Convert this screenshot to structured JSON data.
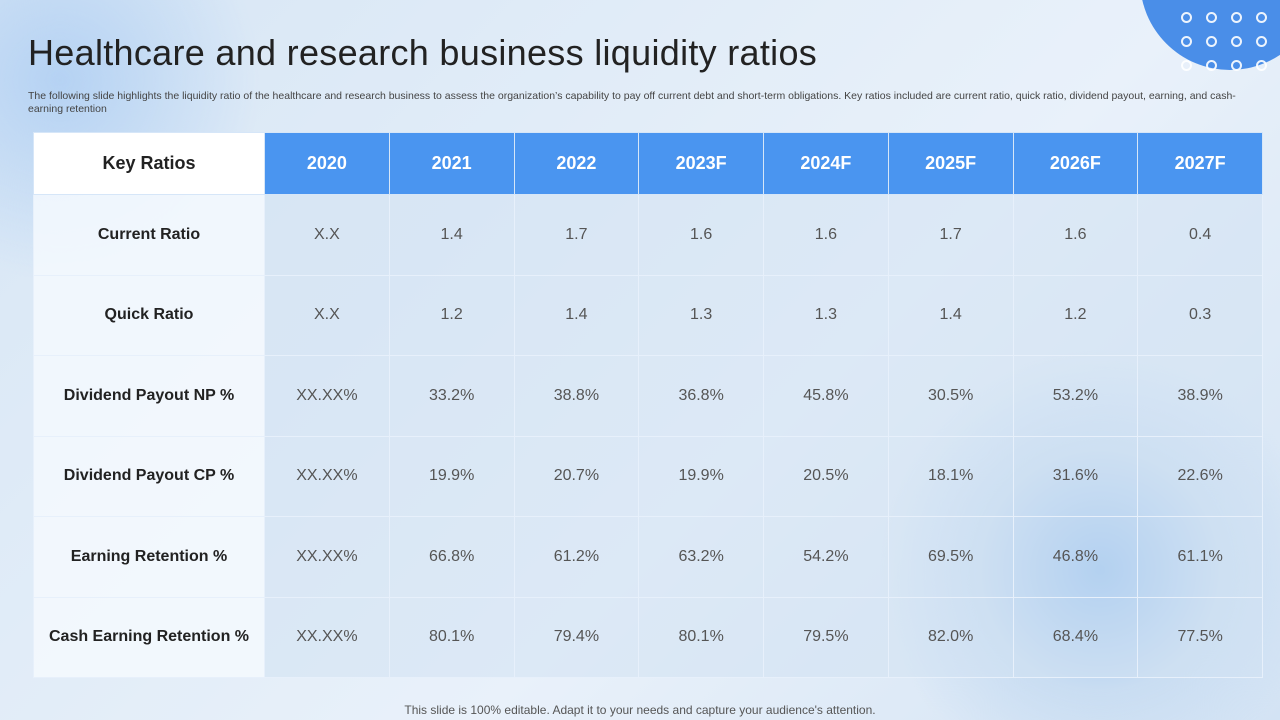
{
  "title": "Healthcare and research business liquidity ratios",
  "subtitle": "The following slide highlights the liquidity ratio of the healthcare and research business to assess the organization’s capability to pay off current debt and short-term obligations. Key ratios included are current ratio, quick ratio, dividend payout,  earning, and cash-earning retention",
  "table": {
    "headers": [
      "Key Ratios",
      "2020",
      "2021",
      "2022",
      "2023F",
      "2024F",
      "2025F",
      "2026F",
      "2027F"
    ],
    "rows": [
      [
        "Current Ratio",
        "X.X",
        "1.4",
        "1.7",
        "1.6",
        "1.6",
        "1.7",
        "1.6",
        "0.4"
      ],
      [
        "Quick Ratio",
        "X.X",
        "1.2",
        "1.4",
        "1.3",
        "1.3",
        "1.4",
        "1.2",
        "0.3"
      ],
      [
        "Dividend Payout NP %",
        "XX.XX%",
        "33.2%",
        "38.8%",
        "36.8%",
        "45.8%",
        "30.5%",
        "53.2%",
        "38.9%"
      ],
      [
        "Dividend Payout CP %",
        "XX.XX%",
        "19.9%",
        "20.7%",
        "19.9%",
        "20.5%",
        "18.1%",
        "31.6%",
        "22.6%"
      ],
      [
        "Earning Retention %",
        "XX.XX%",
        "66.8%",
        "61.2%",
        "63.2%",
        "54.2%",
        "69.5%",
        "46.8%",
        "61.1%"
      ],
      [
        "Cash Earning Retention %",
        "XX.XX%",
        "80.1%",
        "79.4%",
        "80.1%",
        "79.5%",
        "82.0%",
        "68.4%",
        "77.5%"
      ]
    ]
  },
  "footer": "This slide is 100% editable. Adapt it to your needs and capture your audience's attention."
}
